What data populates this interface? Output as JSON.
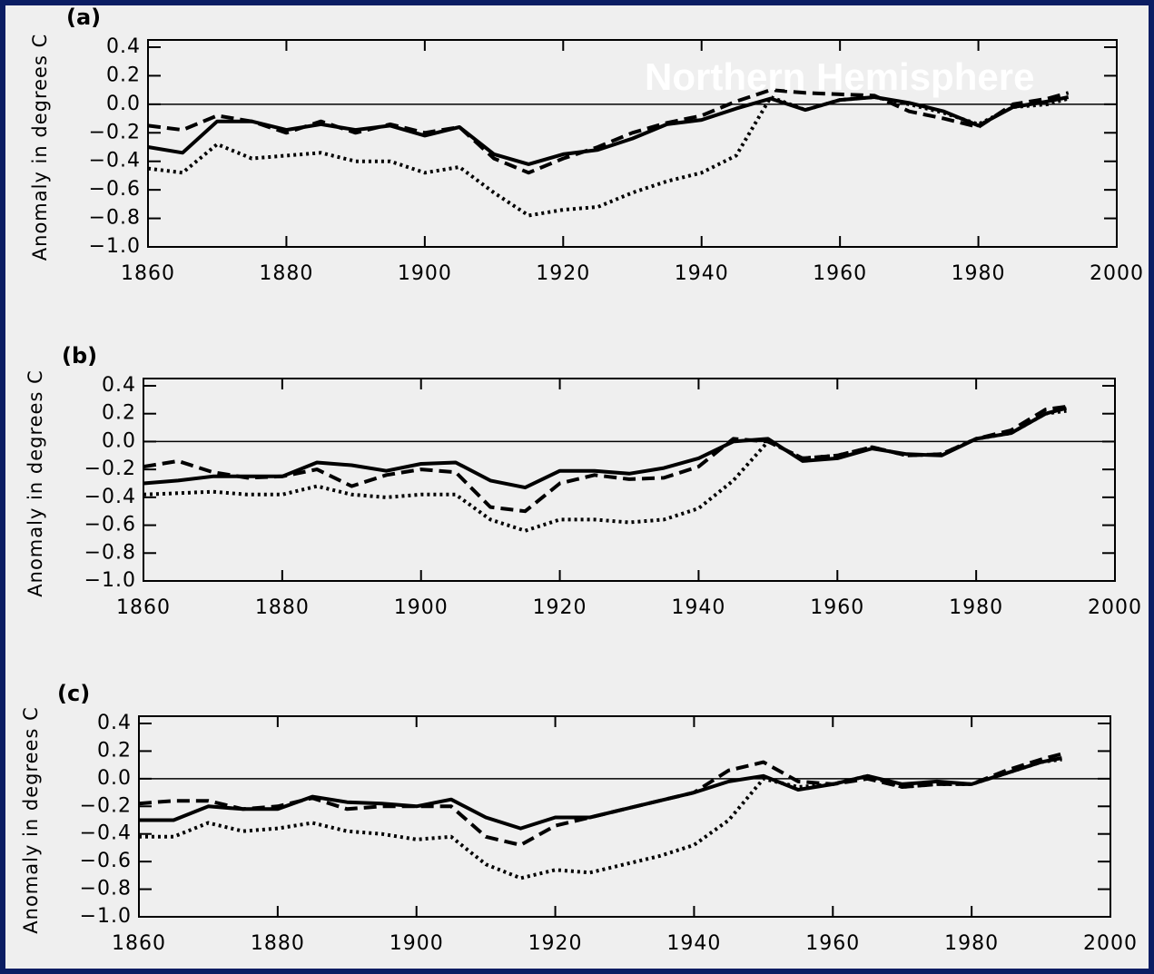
{
  "chart_data": [
    {
      "type": "line",
      "panel_label": "(a)",
      "annotation": "Northern Hemisphere",
      "ylabel": "Anomaly in degrees C",
      "x": [
        1860,
        1865,
        1870,
        1875,
        1880,
        1885,
        1890,
        1895,
        1900,
        1905,
        1910,
        1915,
        1920,
        1925,
        1930,
        1935,
        1940,
        1945,
        1950,
        1955,
        1960,
        1965,
        1970,
        1975,
        1980,
        1985,
        1990,
        1993
      ],
      "series": [
        {
          "style": "solid",
          "color": "#000000",
          "values": [
            -0.3,
            -0.34,
            -0.12,
            -0.12,
            -0.18,
            -0.14,
            -0.18,
            -0.15,
            -0.22,
            -0.16,
            -0.35,
            -0.42,
            -0.35,
            -0.32,
            -0.24,
            -0.14,
            -0.11,
            -0.03,
            0.04,
            -0.04,
            0.03,
            0.05,
            0.01,
            -0.05,
            -0.15,
            -0.02,
            0.02,
            0.05
          ]
        },
        {
          "style": "dashed",
          "color": "#000000",
          "values": [
            -0.15,
            -0.18,
            -0.08,
            -0.12,
            -0.2,
            -0.12,
            -0.2,
            -0.14,
            -0.2,
            -0.16,
            -0.38,
            -0.48,
            -0.38,
            -0.3,
            -0.2,
            -0.13,
            -0.08,
            0.02,
            0.1,
            0.08,
            0.07,
            0.06,
            -0.05,
            -0.1,
            -0.16,
            0.0,
            0.04,
            0.08
          ]
        },
        {
          "style": "dotted",
          "color": "#000000",
          "values": [
            -0.45,
            -0.48,
            -0.28,
            -0.38,
            -0.36,
            -0.34,
            -0.4,
            -0.4,
            -0.48,
            -0.44,
            -0.62,
            -0.78,
            -0.74,
            -0.72,
            -0.62,
            -0.54,
            -0.48,
            -0.36,
            0.05,
            -0.04,
            0.03,
            0.05,
            0.0,
            -0.06,
            -0.14,
            -0.02,
            0.0,
            0.04
          ]
        }
      ],
      "xlim": [
        1860,
        2000
      ],
      "xticks": [
        1860,
        1880,
        1900,
        1920,
        1940,
        1960,
        1980,
        2000
      ],
      "ylim": [
        -1.0,
        0.4
      ],
      "yticks": [
        0.4,
        0.2,
        {
          "value": 0,
          "label": "0.0"
        },
        {
          "value": -0.2,
          "label": "−0.2"
        },
        {
          "value": -0.4,
          "label": "−0.4"
        },
        {
          "value": -0.6,
          "label": "−0.6"
        },
        {
          "value": -0.8,
          "label": "−0.8"
        },
        {
          "value": -1.0,
          "label": "−1.0"
        }
      ],
      "zero_line": true
    },
    {
      "type": "line",
      "panel_label": "(b)",
      "ylabel": "Anomaly in degrees C",
      "x": [
        1860,
        1865,
        1870,
        1875,
        1880,
        1885,
        1890,
        1895,
        1900,
        1905,
        1910,
        1915,
        1920,
        1925,
        1930,
        1935,
        1940,
        1945,
        1950,
        1955,
        1960,
        1965,
        1970,
        1975,
        1980,
        1985,
        1990,
        1993
      ],
      "series": [
        {
          "style": "solid",
          "color": "#000000",
          "values": [
            -0.3,
            -0.28,
            -0.25,
            -0.25,
            -0.25,
            -0.15,
            -0.17,
            -0.21,
            -0.16,
            -0.15,
            -0.28,
            -0.33,
            -0.21,
            -0.21,
            -0.23,
            -0.19,
            -0.12,
            0.0,
            0.02,
            -0.14,
            -0.12,
            -0.05,
            -0.09,
            -0.1,
            0.02,
            0.06,
            0.2,
            0.24
          ]
        },
        {
          "style": "dashed",
          "color": "#000000",
          "values": [
            -0.18,
            -0.14,
            -0.22,
            -0.26,
            -0.25,
            -0.2,
            -0.32,
            -0.24,
            -0.2,
            -0.22,
            -0.47,
            -0.5,
            -0.3,
            -0.24,
            -0.27,
            -0.26,
            -0.18,
            0.02,
            0.0,
            -0.12,
            -0.1,
            -0.04,
            -0.1,
            -0.09,
            0.02,
            0.08,
            0.23,
            0.25
          ]
        },
        {
          "style": "dotted",
          "color": "#000000",
          "values": [
            -0.38,
            -0.37,
            -0.36,
            -0.38,
            -0.38,
            -0.32,
            -0.38,
            -0.4,
            -0.38,
            -0.38,
            -0.56,
            -0.64,
            -0.56,
            -0.56,
            -0.58,
            -0.56,
            -0.48,
            -0.28,
            0.0,
            -0.12,
            -0.1,
            -0.04,
            -0.1,
            -0.09,
            0.02,
            0.06,
            0.2,
            0.22
          ]
        }
      ],
      "xlim": [
        1860,
        2000
      ],
      "xticks": [
        1860,
        1880,
        1900,
        1920,
        1940,
        1960,
        1980,
        2000
      ],
      "ylim": [
        -1.0,
        0.4
      ],
      "yticks": [
        0.4,
        0.2,
        {
          "value": 0,
          "label": "0.0"
        },
        {
          "value": -0.2,
          "label": "−0.2"
        },
        {
          "value": -0.4,
          "label": "−0.4"
        },
        {
          "value": -0.6,
          "label": "−0.6"
        },
        {
          "value": -0.8,
          "label": "−0.8"
        },
        {
          "value": -1.0,
          "label": "−1.0"
        }
      ],
      "zero_line": true
    },
    {
      "type": "line",
      "panel_label": "(c)",
      "ylabel": "Anomaly in degrees C",
      "x": [
        1860,
        1865,
        1870,
        1875,
        1880,
        1885,
        1890,
        1895,
        1900,
        1905,
        1910,
        1915,
        1920,
        1925,
        1930,
        1935,
        1940,
        1945,
        1950,
        1955,
        1960,
        1965,
        1970,
        1975,
        1980,
        1985,
        1990,
        1993
      ],
      "series": [
        {
          "style": "solid",
          "color": "#000000",
          "values": [
            -0.3,
            -0.3,
            -0.2,
            -0.22,
            -0.22,
            -0.13,
            -0.17,
            -0.18,
            -0.2,
            -0.15,
            -0.28,
            -0.36,
            -0.28,
            -0.28,
            -0.22,
            -0.16,
            -0.1,
            -0.02,
            0.02,
            -0.08,
            -0.04,
            0.02,
            -0.04,
            -0.02,
            -0.04,
            0.04,
            0.12,
            0.15
          ]
        },
        {
          "style": "dashed",
          "color": "#000000",
          "values": [
            -0.18,
            -0.16,
            -0.16,
            -0.22,
            -0.2,
            -0.14,
            -0.22,
            -0.2,
            -0.2,
            -0.2,
            -0.42,
            -0.48,
            -0.34,
            -0.28,
            -0.22,
            -0.16,
            -0.1,
            0.06,
            0.12,
            -0.02,
            -0.04,
            0.0,
            -0.06,
            -0.04,
            -0.04,
            0.06,
            0.14,
            0.18
          ]
        },
        {
          "style": "dotted",
          "color": "#000000",
          "values": [
            -0.42,
            -0.42,
            -0.32,
            -0.38,
            -0.36,
            -0.32,
            -0.38,
            -0.4,
            -0.44,
            -0.42,
            -0.62,
            -0.72,
            -0.66,
            -0.68,
            -0.62,
            -0.56,
            -0.48,
            -0.3,
            0.0,
            -0.06,
            -0.04,
            0.02,
            -0.06,
            -0.04,
            -0.04,
            0.04,
            0.12,
            0.14
          ]
        }
      ],
      "xlim": [
        1860,
        2000
      ],
      "xticks": [
        1860,
        1880,
        1900,
        1920,
        1940,
        1960,
        1980,
        2000
      ],
      "ylim": [
        -1.0,
        0.4
      ],
      "yticks": [
        0.4,
        0.2,
        {
          "value": 0,
          "label": "0.0"
        },
        {
          "value": -0.2,
          "label": "−0.2"
        },
        {
          "value": -0.4,
          "label": "−0.4"
        },
        {
          "value": -0.6,
          "label": "−0.6"
        },
        {
          "value": -0.8,
          "label": "−0.8"
        },
        {
          "value": -1.0,
          "label": "−1.0"
        }
      ],
      "zero_line": true
    }
  ]
}
